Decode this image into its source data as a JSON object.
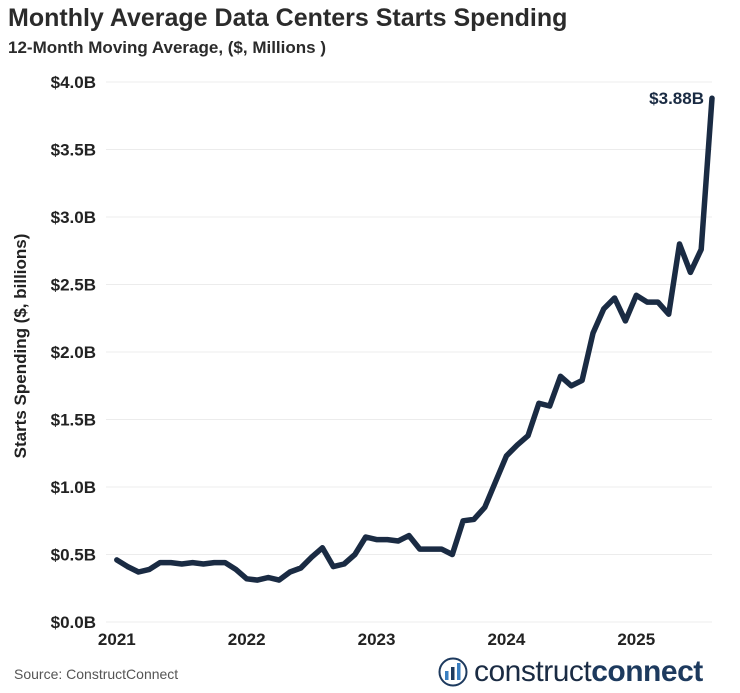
{
  "title": "Monthly Average Data Centers Starts Spending",
  "subtitle": "12-Month Moving Average, ($, Millions )",
  "source": "Source: ConstructConnect",
  "logo": {
    "text_light": "construct",
    "text_bold": "connect"
  },
  "colors": {
    "line": "#1a2b43",
    "grid": "#ececec",
    "text": "#222222"
  },
  "chart_data": {
    "type": "line",
    "ylabel": "Starts Spending ($, billions)",
    "xlabel": "",
    "ylim": [
      0,
      4.0
    ],
    "yticks": [
      {
        "value": 0.0,
        "label": "$0.0B"
      },
      {
        "value": 0.5,
        "label": "$0.5B"
      },
      {
        "value": 1.0,
        "label": "$1.0B"
      },
      {
        "value": 1.5,
        "label": "$1.5B"
      },
      {
        "value": 2.0,
        "label": "$2.0B"
      },
      {
        "value": 2.5,
        "label": "$2.5B"
      },
      {
        "value": 3.0,
        "label": "$3.0B"
      },
      {
        "value": 3.5,
        "label": "$3.5B"
      },
      {
        "value": 4.0,
        "label": "$4.0B"
      }
    ],
    "xlim": [
      "2020-12",
      "2025-08"
    ],
    "xticks": [
      "2021",
      "2022",
      "2023",
      "2024",
      "2025"
    ],
    "grid": "horizontal",
    "end_label": "$3.88B",
    "series": [
      {
        "points": [
          [
            "2021-01",
            0.46
          ],
          [
            "2021-02",
            0.41
          ],
          [
            "2021-03",
            0.37
          ],
          [
            "2021-04",
            0.39
          ],
          [
            "2021-05",
            0.44
          ],
          [
            "2021-06",
            0.44
          ],
          [
            "2021-07",
            0.43
          ],
          [
            "2021-08",
            0.44
          ],
          [
            "2021-09",
            0.43
          ],
          [
            "2021-10",
            0.44
          ],
          [
            "2021-11",
            0.44
          ],
          [
            "2021-12",
            0.39
          ],
          [
            "2022-01",
            0.32
          ],
          [
            "2022-02",
            0.31
          ],
          [
            "2022-03",
            0.33
          ],
          [
            "2022-04",
            0.31
          ],
          [
            "2022-05",
            0.37
          ],
          [
            "2022-06",
            0.4
          ],
          [
            "2022-07",
            0.48
          ],
          [
            "2022-08",
            0.55
          ],
          [
            "2022-09",
            0.41
          ],
          [
            "2022-10",
            0.43
          ],
          [
            "2022-11",
            0.5
          ],
          [
            "2022-12",
            0.63
          ],
          [
            "2023-01",
            0.61
          ],
          [
            "2023-02",
            0.61
          ],
          [
            "2023-03",
            0.6
          ],
          [
            "2023-04",
            0.64
          ],
          [
            "2023-05",
            0.54
          ],
          [
            "2023-06",
            0.54
          ],
          [
            "2023-07",
            0.54
          ],
          [
            "2023-08",
            0.5
          ],
          [
            "2023-09",
            0.75
          ],
          [
            "2023-10",
            0.76
          ],
          [
            "2023-11",
            0.85
          ],
          [
            "2023-12",
            1.04
          ],
          [
            "2024-01",
            1.23
          ],
          [
            "2024-02",
            1.31
          ],
          [
            "2024-03",
            1.38
          ],
          [
            "2024-04",
            1.62
          ],
          [
            "2024-05",
            1.6
          ],
          [
            "2024-06",
            1.82
          ],
          [
            "2024-07",
            1.75
          ],
          [
            "2024-08",
            1.79
          ],
          [
            "2024-09",
            2.14
          ],
          [
            "2024-10",
            2.32
          ],
          [
            "2024-11",
            2.4
          ],
          [
            "2024-12",
            2.23
          ],
          [
            "2025-01",
            2.42
          ],
          [
            "2025-02",
            2.37
          ],
          [
            "2025-03",
            2.37
          ],
          [
            "2025-04",
            2.28
          ],
          [
            "2025-05",
            2.8
          ],
          [
            "2025-06",
            2.59
          ],
          [
            "2025-07",
            2.76
          ],
          [
            "2025-08",
            3.88
          ]
        ]
      }
    ]
  }
}
